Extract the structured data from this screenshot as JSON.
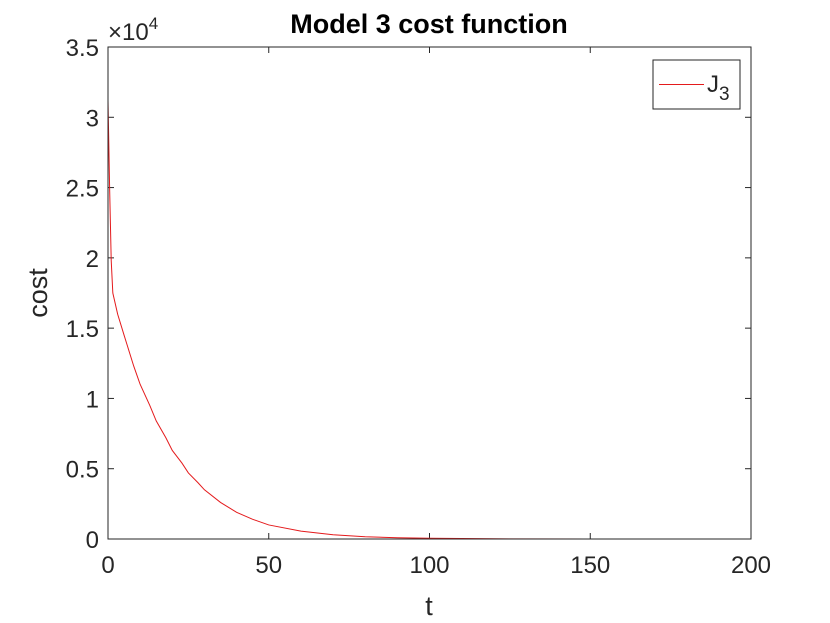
{
  "chart_data": {
    "type": "line",
    "title": "Model 3 cost function",
    "xlabel": "t",
    "ylabel": "cost",
    "xlim": [
      0,
      200
    ],
    "ylim": [
      0,
      35000
    ],
    "x_ticks": [
      0,
      50,
      100,
      150,
      200
    ],
    "y_ticks": [
      0,
      0.5,
      1,
      1.5,
      2,
      2.5,
      3,
      3.5
    ],
    "x_tick_labels": [
      "0",
      "50",
      "100",
      "150",
      "200"
    ],
    "y_tick_labels": [
      "0",
      "0.5",
      "1",
      "1.5",
      "2",
      "2.5",
      "3",
      "3.5"
    ],
    "y_multiplier_base": "×10",
    "y_multiplier_exp": "4",
    "grid": false,
    "legend": {
      "position": "top-right",
      "label": "J",
      "subscript": "3"
    },
    "series": [
      {
        "name": "J3",
        "color": "#e41a1c",
        "points": [
          [
            0,
            31200
          ],
          [
            0.5,
            25000
          ],
          [
            1,
            19800
          ],
          [
            1.5,
            17500
          ],
          [
            3,
            16000
          ],
          [
            5,
            14500
          ],
          [
            8,
            12300
          ],
          [
            10,
            11000
          ],
          [
            13,
            9500
          ],
          [
            15,
            8400
          ],
          [
            18,
            7200
          ],
          [
            20,
            6300
          ],
          [
            23,
            5400
          ],
          [
            25,
            4700
          ],
          [
            28,
            4000
          ],
          [
            30,
            3500
          ],
          [
            35,
            2600
          ],
          [
            40,
            1900
          ],
          [
            45,
            1400
          ],
          [
            50,
            1000
          ],
          [
            60,
            560
          ],
          [
            70,
            300
          ],
          [
            80,
            160
          ],
          [
            90,
            90
          ],
          [
            100,
            50
          ],
          [
            120,
            15
          ],
          [
            150,
            3
          ],
          [
            175,
            1
          ],
          [
            200,
            0
          ]
        ]
      }
    ]
  }
}
